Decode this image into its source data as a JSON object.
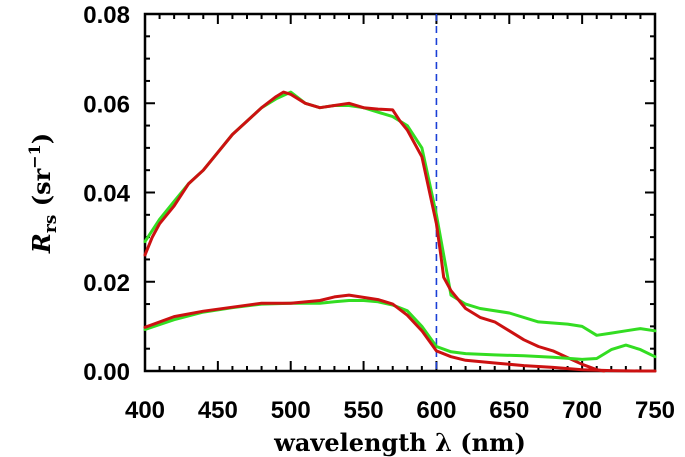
{
  "chart_data": {
    "type": "line",
    "title": "",
    "xlabel": "wavelength λ (nm)",
    "ylabel": {
      "symbol": "R",
      "subscript": "rs",
      "unit": "(sr",
      "unit_exp": "−1",
      "unit_close": ")"
    },
    "xlim": [
      400,
      750
    ],
    "ylim": [
      0,
      0.08
    ],
    "xticks": [
      400,
      450,
      500,
      550,
      600,
      650,
      700,
      750
    ],
    "xtick_labels": [
      "400",
      "450",
      "500",
      "550",
      "600",
      "650",
      "700",
      "750"
    ],
    "yticks": [
      0,
      0.02,
      0.04,
      0.06,
      0.08
    ],
    "ytick_labels": [
      "0.00",
      "0.02",
      "0.04",
      "0.06",
      "0.08"
    ],
    "grid": false,
    "legend": "none",
    "annotations": [
      {
        "type": "vline",
        "x": 600,
        "style": "dashed",
        "color": "#1a3fd6"
      }
    ],
    "series": [
      {
        "color": "#33dd22",
        "x": [
          400,
          410,
          420,
          430,
          440,
          450,
          460,
          470,
          480,
          490,
          500,
          510,
          520,
          530,
          540,
          550,
          560,
          570,
          580,
          590,
          600,
          605,
          610,
          620,
          630,
          650,
          670,
          690,
          700,
          710,
          720,
          730,
          740,
          750
        ],
        "y": [
          0.029,
          0.034,
          0.038,
          0.042,
          0.045,
          0.049,
          0.053,
          0.056,
          0.059,
          0.061,
          0.0625,
          0.06,
          0.059,
          0.0595,
          0.0595,
          0.059,
          0.058,
          0.057,
          0.055,
          0.05,
          0.035,
          0.026,
          0.017,
          0.015,
          0.014,
          0.013,
          0.011,
          0.0105,
          0.01,
          0.008,
          0.0085,
          0.009,
          0.0095,
          0.009
        ]
      },
      {
        "color": "#cc1111",
        "x": [
          400,
          405,
          410,
          420,
          430,
          440,
          450,
          460,
          470,
          480,
          490,
          495,
          500,
          505,
          510,
          520,
          530,
          540,
          550,
          560,
          570,
          575,
          580,
          590,
          600,
          603,
          605,
          610,
          620,
          630,
          640,
          650,
          660,
          670,
          680,
          690,
          700,
          710,
          715
        ],
        "y": [
          0.026,
          0.03,
          0.033,
          0.037,
          0.042,
          0.045,
          0.049,
          0.053,
          0.056,
          0.059,
          0.0615,
          0.0625,
          0.062,
          0.061,
          0.06,
          0.059,
          0.0595,
          0.06,
          0.059,
          0.0587,
          0.0585,
          0.056,
          0.054,
          0.048,
          0.033,
          0.026,
          0.021,
          0.018,
          0.014,
          0.012,
          0.011,
          0.009,
          0.007,
          0.0055,
          0.0045,
          0.003,
          0.0015,
          0.0003,
          0.0
        ]
      },
      {
        "color": "#33dd22",
        "x": [
          400,
          420,
          440,
          460,
          480,
          500,
          520,
          530,
          540,
          550,
          560,
          570,
          580,
          590,
          600,
          610,
          620,
          640,
          660,
          680,
          700,
          710,
          720,
          730,
          740,
          750
        ],
        "y": [
          0.0093,
          0.0115,
          0.0132,
          0.0142,
          0.015,
          0.0152,
          0.0152,
          0.0155,
          0.0158,
          0.0158,
          0.0155,
          0.0148,
          0.0135,
          0.01,
          0.0055,
          0.0043,
          0.0039,
          0.0036,
          0.0034,
          0.0031,
          0.0026,
          0.0028,
          0.0048,
          0.0058,
          0.0048,
          0.0032
        ]
      },
      {
        "color": "#cc1111",
        "x": [
          400,
          420,
          440,
          460,
          480,
          500,
          520,
          530,
          540,
          550,
          560,
          570,
          580,
          590,
          600,
          610,
          620,
          640,
          660,
          680,
          700,
          720,
          740,
          750
        ],
        "y": [
          0.0098,
          0.0122,
          0.0134,
          0.0143,
          0.0152,
          0.0152,
          0.0158,
          0.0166,
          0.017,
          0.0165,
          0.016,
          0.015,
          0.0125,
          0.009,
          0.0045,
          0.0032,
          0.0024,
          0.0018,
          0.0012,
          0.0008,
          0.0003,
          0.0001,
          0.0,
          0.0
        ]
      }
    ]
  }
}
